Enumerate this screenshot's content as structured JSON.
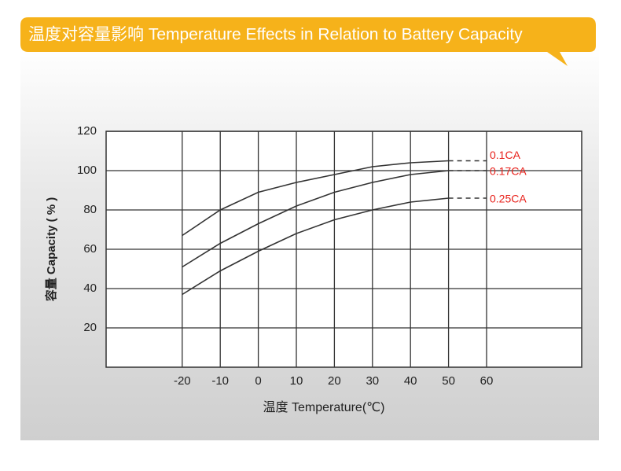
{
  "chart_data": {
    "type": "line",
    "title": "温度对容量影响 Temperature Effects in Relation to Battery Capacity",
    "x_label": "温度  Temperature(℃)",
    "y_label": "容量 Capacity ( % )",
    "x": [
      -20,
      -10,
      0,
      10,
      20,
      30,
      40,
      50,
      60
    ],
    "series": [
      {
        "name": "0.1CA",
        "color": "#333333",
        "label_color": "#e8221c",
        "values": [
          67,
          80,
          89,
          94,
          98,
          102,
          104,
          105,
          105
        ]
      },
      {
        "name": "0.17CA",
        "color": "#333333",
        "label_color": "#e8221c",
        "values": [
          51,
          63,
          73,
          82,
          89,
          94,
          98,
          100,
          100
        ]
      },
      {
        "name": "0.25CA",
        "color": "#333333",
        "label_color": "#e8221c",
        "values": [
          37,
          49,
          59,
          68,
          75,
          80,
          84,
          86,
          86
        ]
      }
    ],
    "dashed_from_x": 50,
    "xlim": [
      -40,
      85
    ],
    "xticks": [
      -20,
      -10,
      0,
      10,
      20,
      30,
      40,
      50,
      60
    ],
    "ylim": [
      0,
      120
    ],
    "yticks": [
      20,
      40,
      60,
      80,
      100,
      120
    ],
    "grid": true
  }
}
